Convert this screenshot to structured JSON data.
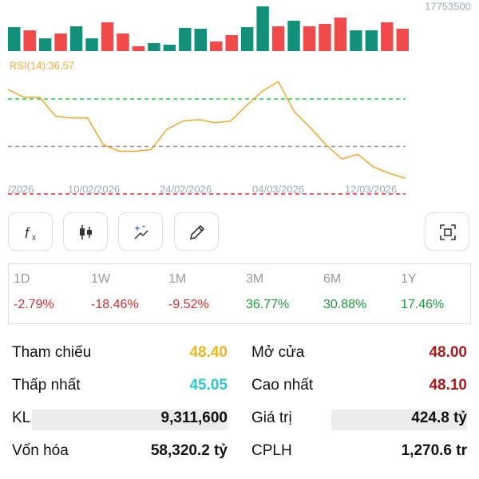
{
  "volume": {
    "max_label": "17753500",
    "ylim": [
      0,
      17753500
    ],
    "values": [
      9510000,
      8240000,
      5070000,
      6970000,
      9830000,
      5070000,
      11410000,
      6970000,
      1900000,
      3170000,
      2540000,
      9190000,
      8880000,
      3800000,
      6340000,
      9510000,
      17753500,
      9830000,
      12050000,
      9830000,
      10780000,
      13320000,
      8240000,
      8240000,
      11410000,
      8880000
    ],
    "colors": [
      "#13907a",
      "#f04a4a",
      "#13907a",
      "#f04a4a",
      "#13907a",
      "#13907a",
      "#f04a4a",
      "#f04a4a",
      "#f04a4a",
      "#13907a",
      "#13907a",
      "#13907a",
      "#13907a",
      "#f04a4a",
      "#f04a4a",
      "#13907a",
      "#13907a",
      "#f04a4a",
      "#13907a",
      "#f04a4a",
      "#f04a4a",
      "#f04a4a",
      "#13907a",
      "#13907a",
      "#f04a4a",
      "#f04a4a"
    ]
  },
  "rsi": {
    "label": "RSI(14):36,57",
    "color": "#f0a830",
    "ylim": [
      30,
      70
    ],
    "levels": [
      {
        "value": 70,
        "color": "#2ecc40"
      },
      {
        "value": 50,
        "color": "#999999"
      },
      {
        "value": 30,
        "color": "#e03030"
      }
    ],
    "values": [
      74,
      70.7,
      70.7,
      62.7,
      62,
      62,
      50.7,
      48,
      48,
      48.7,
      57.3,
      60.7,
      61.3,
      60,
      60.7,
      67.3,
      73.3,
      77.3,
      64.7,
      58,
      50.7,
      44.7,
      46.7,
      41.3,
      38.7,
      36.57
    ]
  },
  "dates": [
    "/2026",
    "10/02/2026",
    "24/02/2026",
    "04/03/2026",
    "12/03/2026"
  ],
  "periods": [
    {
      "label": "1D",
      "value": "-2.79%",
      "color": "#d03030"
    },
    {
      "label": "1W",
      "value": "-18.46%",
      "color": "#d03030"
    },
    {
      "label": "1M",
      "value": "-9.52%",
      "color": "#d03030"
    },
    {
      "label": "3M",
      "value": "36.77%",
      "color": "#1a9a3a"
    },
    {
      "label": "6M",
      "value": "30.88%",
      "color": "#1a9a3a"
    },
    {
      "label": "1Y",
      "value": "17.46%",
      "color": "#1a9a3a"
    }
  ],
  "stats": [
    [
      {
        "label": "Tham chiếu",
        "value": "48.40",
        "color": "#e8b820"
      },
      {
        "label": "Mở cửa",
        "value": "48.00",
        "color": "#b01818"
      }
    ],
    [
      {
        "label": "Thấp nhất",
        "value": "45.05",
        "color": "#2ac8d0"
      },
      {
        "label": "Cao nhất",
        "value": "48.10",
        "color": "#b01818"
      }
    ],
    [
      {
        "label": "KL",
        "value": "9,311,600",
        "color": "#111111"
      },
      {
        "label": "Giá trị",
        "value": "424.8 tỷ",
        "color": "#111111"
      }
    ],
    [
      {
        "label": "Vốn hóa",
        "value": "58,320.2 tỷ",
        "color": "#111111"
      },
      {
        "label": "CPLH",
        "value": "1,270.6 tr",
        "color": "#111111"
      }
    ]
  ]
}
